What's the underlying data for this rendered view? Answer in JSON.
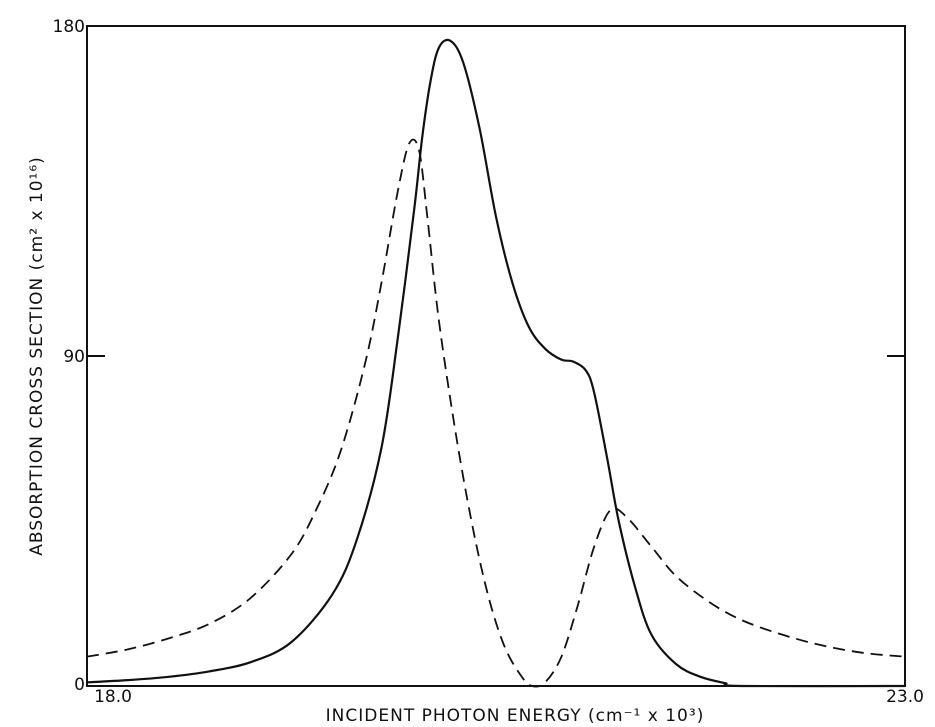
{
  "chart_data": {
    "type": "line",
    "xlabel": "INCIDENT PHOTON ENERGY (cm⁻¹ x 10³)",
    "ylabel": "ABSORPTION CROSS SECTION (cm² x 10¹⁶)",
    "xlim": [
      18.0,
      23.0
    ],
    "ylim": [
      0,
      180
    ],
    "x_tick_labels": [
      "18.0",
      "23.0"
    ],
    "y_tick_labels": [
      "0",
      "90",
      "180"
    ],
    "grid": false,
    "series": [
      {
        "style": "solid",
        "x": [
          18.0,
          18.25,
          18.5,
          18.75,
          19.0,
          19.25,
          19.5,
          19.65,
          19.8,
          19.9,
          20.0,
          20.05,
          20.1,
          20.15,
          20.22,
          20.3,
          20.4,
          20.5,
          20.6,
          20.7,
          20.8,
          20.9,
          20.97,
          21.05,
          21.1,
          21.18,
          21.25,
          21.35,
          21.45,
          21.6,
          21.75,
          21.9,
          22.0,
          23.0
        ],
        "y": [
          1,
          1.6,
          2.5,
          4,
          6.5,
          12,
          25,
          40,
          65,
          95,
          130,
          150,
          165,
          174,
          176,
          170,
          152,
          128,
          110,
          98,
          92,
          89,
          88.5,
          86,
          80,
          62,
          45,
          27,
          14,
          6,
          2.5,
          0.8,
          0,
          0
        ]
      },
      {
        "style": "dashed",
        "x": [
          18.0,
          18.25,
          18.5,
          18.75,
          19.0,
          19.25,
          19.4,
          19.55,
          19.7,
          19.8,
          19.9,
          19.97,
          20.03,
          20.08,
          20.15,
          20.25,
          20.35,
          20.45,
          20.55,
          20.65,
          20.72,
          20.8,
          20.9,
          21.0,
          21.1,
          21.2,
          21.3,
          21.45,
          21.6,
          21.8,
          22.0,
          22.25,
          22.5,
          22.75,
          23.0
        ],
        "y": [
          8,
          10,
          13,
          17,
          24,
          36,
          48,
          64,
          88,
          110,
          135,
          148,
          146,
          128,
          100,
          70,
          45,
          25,
          11,
          3,
          0,
          1,
          8,
          22,
          38,
          48,
          46,
          38,
          30,
          23,
          18,
          14,
          11,
          9,
          8
        ]
      }
    ]
  }
}
